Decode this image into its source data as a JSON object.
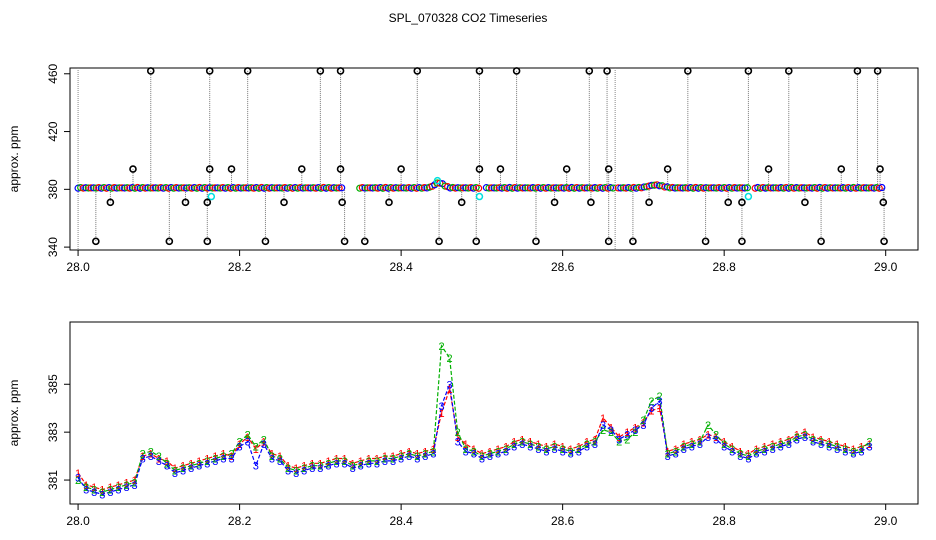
{
  "figure": {
    "title": "SPL_070328  CO2 Timeseries"
  },
  "chart_data": [
    {
      "type": "scatter",
      "title": "",
      "xlabel": "",
      "ylabel": "approx. ppm",
      "xlim": [
        27.99,
        29.04
      ],
      "ylim": [
        338,
        464
      ],
      "x_ticks": [
        "28.0",
        "28.2",
        "28.4",
        "28.6",
        "28.8",
        "29.0"
      ],
      "x_tick_values": [
        28.0,
        28.2,
        28.4,
        28.6,
        28.8,
        29.0
      ],
      "y_ticks": [
        "340",
        "380",
        "420",
        "460"
      ],
      "y_tick_values": [
        340,
        380,
        420,
        460
      ],
      "baseline_ppm": 381,
      "vertical_lines_x": [
        28.0,
        28.665
      ],
      "outlier_high_x": [
        28.09,
        28.163,
        28.21,
        28.3,
        28.325,
        28.42,
        28.497,
        28.543,
        28.633,
        28.655,
        28.755,
        28.83,
        28.88,
        28.965,
        28.99
      ],
      "outlier_high_y": 462,
      "outlier_low_x": [
        28.022,
        28.113,
        28.16,
        28.232,
        28.33,
        28.355,
        28.447,
        28.493,
        28.567,
        28.657,
        28.687,
        28.777,
        28.822,
        28.92,
        28.998
      ],
      "outlier_low_y": 344,
      "mid_points": [
        [
          28.068,
          394
        ],
        [
          28.04,
          371
        ],
        [
          28.163,
          394
        ],
        [
          28.16,
          371
        ],
        [
          28.19,
          394
        ],
        [
          28.133,
          371
        ],
        [
          28.255,
          371
        ],
        [
          28.277,
          394
        ],
        [
          28.325,
          394
        ],
        [
          28.327,
          371
        ],
        [
          28.385,
          371
        ],
        [
          28.4,
          394
        ],
        [
          28.475,
          371
        ],
        [
          28.497,
          394
        ],
        [
          28.523,
          394
        ],
        [
          28.59,
          371
        ],
        [
          28.605,
          394
        ],
        [
          28.657,
          394
        ],
        [
          28.635,
          371
        ],
        [
          28.707,
          371
        ],
        [
          28.73,
          394
        ],
        [
          28.805,
          371
        ],
        [
          28.822,
          371
        ],
        [
          28.855,
          394
        ],
        [
          28.9,
          371
        ],
        [
          28.945,
          394
        ],
        [
          28.993,
          394
        ],
        [
          28.997,
          371
        ]
      ],
      "cyan_points": [
        [
          28.165,
          375
        ],
        [
          28.497,
          375
        ],
        [
          28.83,
          375
        ],
        [
          28.445,
          386
        ]
      ]
    },
    {
      "type": "line",
      "title": "",
      "xlabel": "",
      "ylabel": "approx. ppm",
      "xlim": [
        27.99,
        29.04
      ],
      "ylim": [
        380.0,
        387.6
      ],
      "x_ticks": [
        "28.0",
        "28.2",
        "28.4",
        "28.6",
        "28.8",
        "29.0"
      ],
      "x_tick_values": [
        28.0,
        28.2,
        28.4,
        28.6,
        28.8,
        29.0
      ],
      "y_ticks": [
        "381",
        "383",
        "385"
      ],
      "y_tick_values": [
        381,
        383,
        385
      ],
      "x_start": 28.0,
      "x_step": 0.01,
      "series": [
        {
          "marker": "1",
          "color": "#ff0000",
          "values": [
            381.3,
            380.8,
            380.7,
            380.6,
            380.7,
            380.8,
            380.9,
            381.0,
            382.0,
            382.1,
            381.9,
            381.8,
            381.5,
            381.6,
            381.7,
            381.8,
            381.9,
            382.0,
            382.1,
            382.0,
            382.5,
            382.8,
            382.3,
            382.6,
            382.1,
            382.0,
            381.6,
            381.5,
            381.6,
            381.7,
            381.7,
            381.8,
            381.9,
            381.9,
            381.7,
            381.8,
            381.9,
            381.9,
            382.0,
            382.0,
            382.1,
            382.2,
            382.1,
            382.2,
            382.3,
            383.8,
            384.8,
            382.8,
            382.5,
            382.3,
            382.1,
            382.2,
            382.3,
            382.4,
            382.6,
            382.7,
            382.6,
            382.5,
            382.4,
            382.5,
            382.4,
            382.3,
            382.4,
            382.6,
            382.7,
            383.6,
            383.2,
            382.8,
            383.0,
            383.2,
            383.4,
            383.9,
            384.0,
            382.2,
            382.3,
            382.5,
            382.6,
            382.7,
            382.9,
            382.8,
            382.6,
            382.4,
            382.2,
            382.1,
            382.3,
            382.4,
            382.5,
            382.6,
            382.7,
            382.9,
            383.0,
            382.8,
            382.7,
            382.6,
            382.5,
            382.4,
            382.3,
            382.4,
            382.5
          ]
        },
        {
          "marker": "2",
          "color": "#00b000",
          "values": [
            381.0,
            380.7,
            380.6,
            380.5,
            380.6,
            380.7,
            380.8,
            380.9,
            382.1,
            382.2,
            382.0,
            381.7,
            381.4,
            381.5,
            381.6,
            381.7,
            381.8,
            381.9,
            382.0,
            382.1,
            382.6,
            382.9,
            382.4,
            382.7,
            382.0,
            381.9,
            381.5,
            381.4,
            381.5,
            381.6,
            381.6,
            381.7,
            381.8,
            381.8,
            381.6,
            381.7,
            381.8,
            381.8,
            381.9,
            381.9,
            382.0,
            382.1,
            382.0,
            382.1,
            382.2,
            386.6,
            386.1,
            383.0,
            382.3,
            382.2,
            382.0,
            382.1,
            382.2,
            382.3,
            382.5,
            382.6,
            382.5,
            382.4,
            382.3,
            382.4,
            382.3,
            382.2,
            382.3,
            382.5,
            382.6,
            383.1,
            383.0,
            382.6,
            382.7,
            383.0,
            383.5,
            384.3,
            384.5,
            382.1,
            382.2,
            382.4,
            382.5,
            382.6,
            383.3,
            382.9,
            382.5,
            382.3,
            382.1,
            382.0,
            382.2,
            382.3,
            382.4,
            382.5,
            382.6,
            382.8,
            382.9,
            382.7,
            382.6,
            382.5,
            382.4,
            382.3,
            382.2,
            382.3,
            382.6
          ]
        },
        {
          "marker": "3",
          "color": "#0000ff",
          "values": [
            381.1,
            380.6,
            380.5,
            380.4,
            380.5,
            380.6,
            380.7,
            380.8,
            381.9,
            382.0,
            381.8,
            381.6,
            381.3,
            381.4,
            381.5,
            381.6,
            381.7,
            381.8,
            381.9,
            381.9,
            382.4,
            382.6,
            381.6,
            382.5,
            381.9,
            381.8,
            381.4,
            381.3,
            381.4,
            381.5,
            381.5,
            381.6,
            381.7,
            381.7,
            381.5,
            381.6,
            381.7,
            381.7,
            381.8,
            381.8,
            381.9,
            382.0,
            381.9,
            382.0,
            382.1,
            384.1,
            385.0,
            382.6,
            382.2,
            382.1,
            381.9,
            382.0,
            382.1,
            382.2,
            382.4,
            382.5,
            382.4,
            382.3,
            382.2,
            382.3,
            382.2,
            382.1,
            382.2,
            382.4,
            382.5,
            383.3,
            383.1,
            382.7,
            382.9,
            383.1,
            383.3,
            384.0,
            384.3,
            382.0,
            382.1,
            382.3,
            382.4,
            382.5,
            382.8,
            382.7,
            382.4,
            382.2,
            382.0,
            381.9,
            382.1,
            382.2,
            382.3,
            382.4,
            382.5,
            382.7,
            382.8,
            382.6,
            382.5,
            382.4,
            382.3,
            382.2,
            382.1,
            382.2,
            382.4
          ]
        }
      ]
    }
  ]
}
